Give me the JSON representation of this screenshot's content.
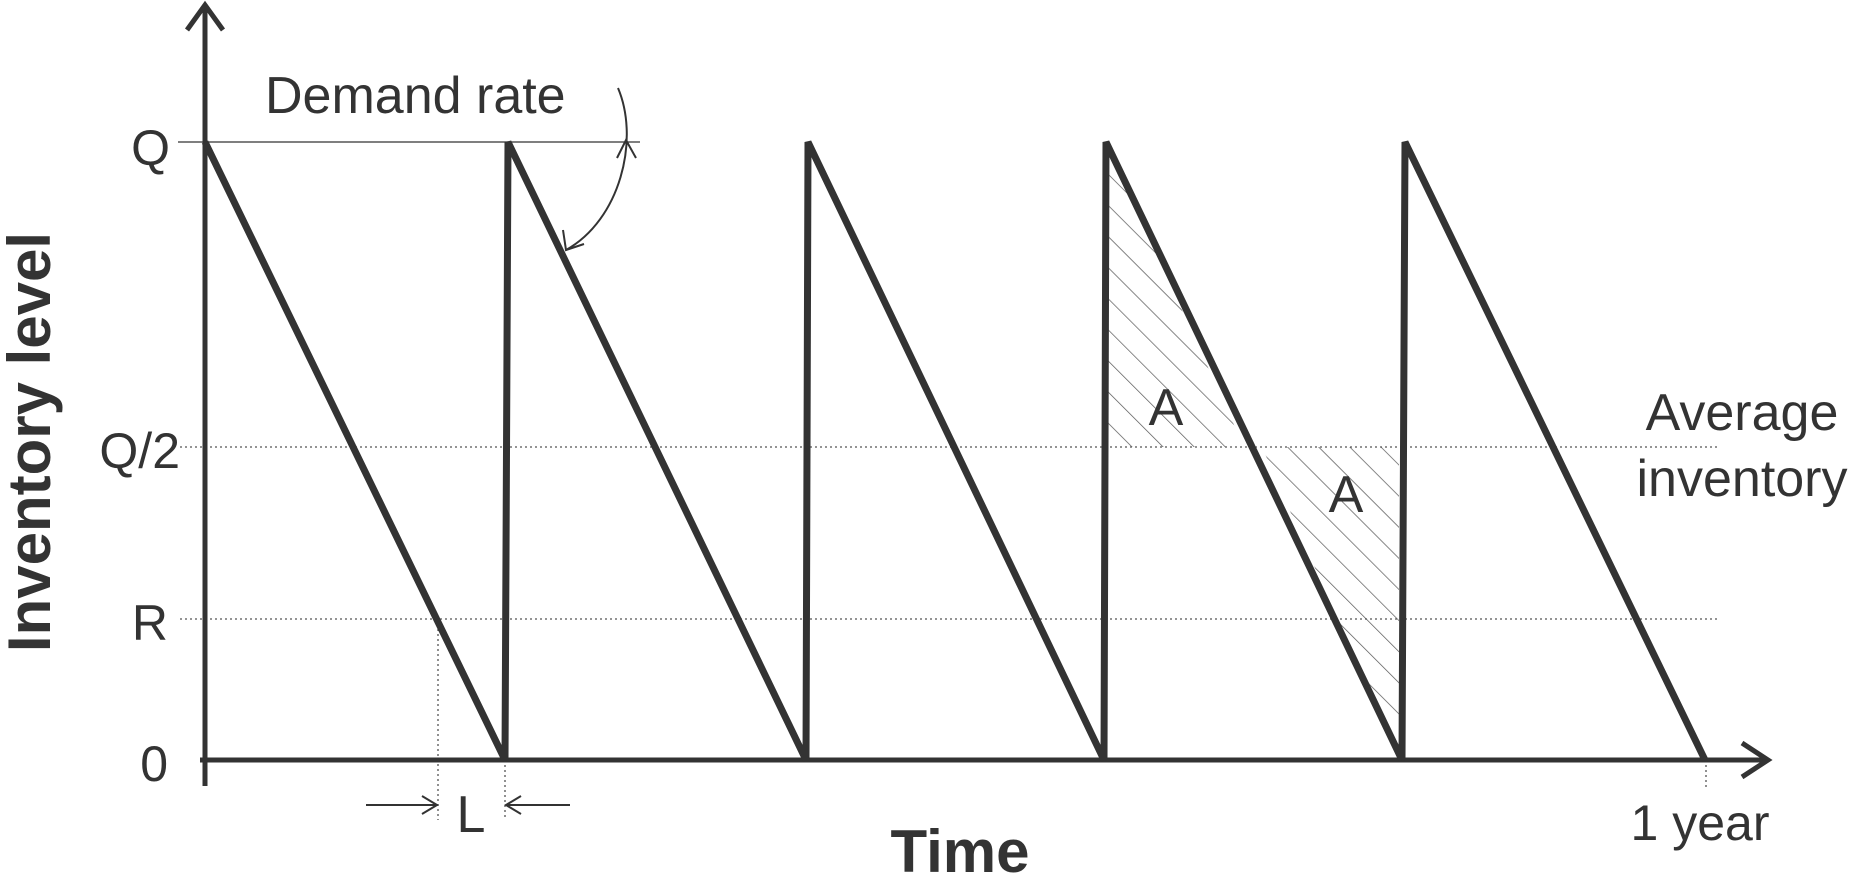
{
  "axes": {
    "y_label": "Inventory level",
    "x_label": "Time",
    "y_ticks": [
      "Q",
      "Q/2",
      "R",
      "0"
    ],
    "x_end_label": "1 year"
  },
  "annotations": {
    "demand_rate": "Demand rate",
    "lead_time": "L",
    "area_upper": "A",
    "area_lower": "A",
    "average_line1": "Average",
    "average_line2": "inventory"
  },
  "model": {
    "cycles": 5,
    "max_level_label": "Q",
    "average_level_label": "Q/2",
    "reorder_point_label": "R"
  },
  "colors": {
    "line": "#333333",
    "background": "#ffffff"
  }
}
